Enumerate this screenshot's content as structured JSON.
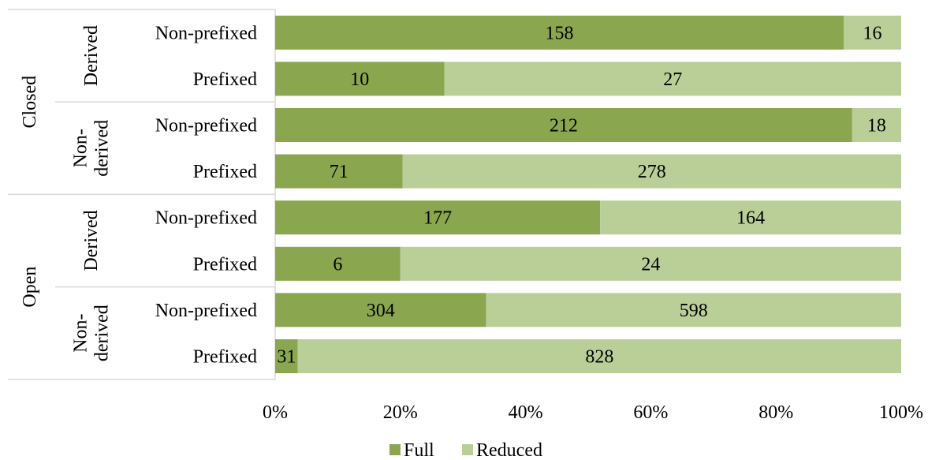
{
  "chart_data": {
    "type": "bar",
    "orientation": "horizontal",
    "stacked": "percent",
    "groups": [
      {
        "label": "Closed",
        "subgroups": [
          {
            "label": "Derived",
            "rows": [
              {
                "label": "Non-prefixed",
                "values": [
                  158,
                  16
                ]
              },
              {
                "label": "Prefixed",
                "values": [
                  10,
                  27
                ]
              }
            ]
          },
          {
            "label": "Non-derived",
            "label_lines": [
              "Non-",
              "derived"
            ],
            "rows": [
              {
                "label": "Non-prefixed",
                "values": [
                  212,
                  18
                ]
              },
              {
                "label": "Prefixed",
                "values": [
                  71,
                  278
                ]
              }
            ]
          }
        ]
      },
      {
        "label": "Open",
        "subgroups": [
          {
            "label": "Derived",
            "rows": [
              {
                "label": "Non-prefixed",
                "values": [
                  177,
                  164
                ]
              },
              {
                "label": "Prefixed",
                "values": [
                  6,
                  24
                ]
              }
            ]
          },
          {
            "label": "Non-derived",
            "label_lines": [
              "Non-",
              "derived"
            ],
            "rows": [
              {
                "label": "Non-prefixed",
                "values": [
                  304,
                  598
                ]
              },
              {
                "label": "Prefixed",
                "values": [
                  31,
                  828
                ]
              }
            ]
          }
        ]
      }
    ],
    "series": [
      {
        "name": "Full",
        "color": "#8aa64e"
      },
      {
        "name": "Reduced",
        "color": "#bacf97"
      }
    ],
    "x_ticks": [
      "0%",
      "20%",
      "40%",
      "60%",
      "80%",
      "100%"
    ],
    "xlim": [
      0,
      100
    ],
    "grid": false,
    "legend_position": "bottom"
  }
}
